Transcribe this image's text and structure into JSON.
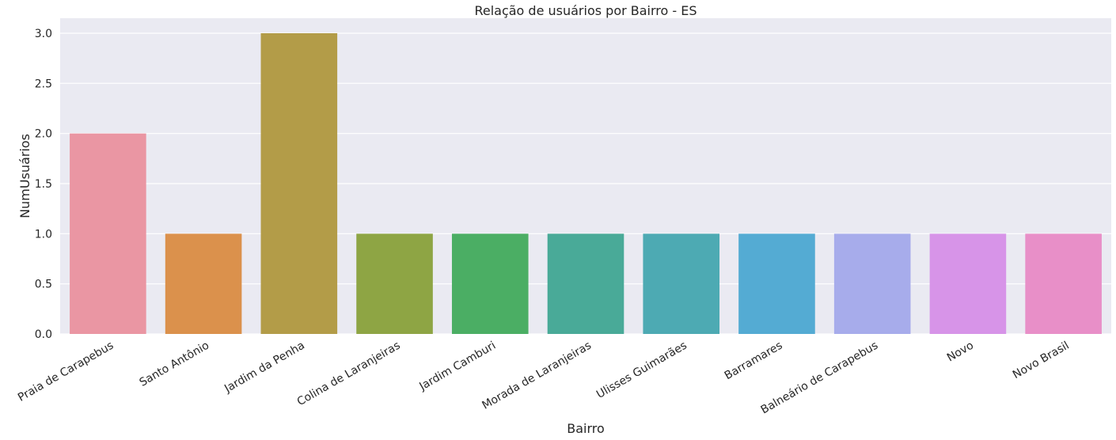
{
  "chart_data": {
    "type": "bar",
    "title": "Relação de usuários por Bairro - ES",
    "xlabel": "Bairro",
    "ylabel": "NumUsuários",
    "ylim": [
      0,
      3.15
    ],
    "yticks": [
      "0.0",
      "0.5",
      "1.0",
      "1.5",
      "2.0",
      "2.5",
      "3.0"
    ],
    "grid": true,
    "categories": [
      "Praia de Carapebus",
      "Santo Antônio",
      "Jardim da Penha",
      "Colina de Laranjeiras",
      "Jardim Camburi",
      "Morada de Laranjeiras",
      "Ulisses Guimarães",
      "Barramares",
      "Balneário de Carapebus",
      "Novo",
      "Novo Brasil"
    ],
    "values": [
      2,
      1,
      3,
      1,
      1,
      1,
      1,
      1,
      1,
      1,
      1
    ],
    "colors": [
      "#ea96a3",
      "#db914c",
      "#b39c48",
      "#8ea544",
      "#4bae64",
      "#49aa98",
      "#4daab3",
      "#54abd3",
      "#a7aceb",
      "#d794e8",
      "#e88fc8"
    ],
    "background": "#eaeaf2"
  }
}
